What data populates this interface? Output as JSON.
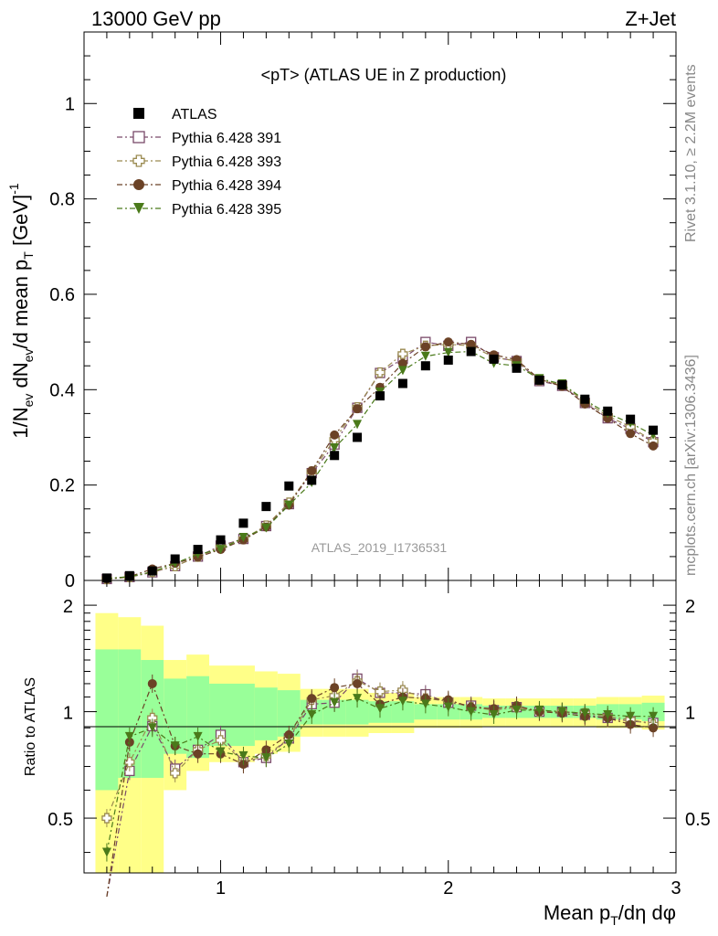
{
  "header": {
    "left": "13000 GeV pp",
    "right": "Z+Jet"
  },
  "side_labels": {
    "rivet": "Rivet 3.1.10, ≥ 2.2M events",
    "mcplots": "mcplots.cern.ch [arXiv:1306.3436]"
  },
  "colors": {
    "ATLAS": "#000000",
    "p391": "#7a4a6a",
    "p393": "#9a8a50",
    "p394": "#6b4226",
    "p395": "#4a7a1a",
    "band_inner": "#99ff99",
    "band_outer": "#ffff88"
  },
  "chart_data": [
    {
      "type": "line",
      "title": "<pT> (ATLAS UE in Z production)",
      "watermark": "ATLAS_2019_I1736531",
      "ylabel": "1/N_ev dN_ev/d mean p_T [GeV]^-1",
      "xlim": [
        0.4,
        3.0
      ],
      "ylim": [
        0,
        1.15
      ],
      "yticks": [
        0,
        0.2,
        0.4,
        0.6,
        0.8,
        1
      ],
      "ytick_labels": [
        "0",
        "0.2",
        "0.4",
        "0.6",
        "0.8",
        "1"
      ],
      "legend_position": "top-left",
      "x": [
        0.5,
        0.6,
        0.7,
        0.8,
        0.9,
        1.0,
        1.1,
        1.2,
        1.3,
        1.4,
        1.5,
        1.6,
        1.7,
        1.8,
        1.9,
        2.0,
        2.1,
        2.2,
        2.3,
        2.4,
        2.5,
        2.6,
        2.7,
        2.8,
        2.9
      ],
      "series": [
        {
          "name": "ATLAS",
          "marker": "filled-square",
          "values": [
            0.005,
            0.01,
            0.02,
            0.045,
            0.065,
            0.085,
            0.12,
            0.155,
            0.198,
            0.21,
            0.262,
            0.3,
            0.387,
            0.413,
            0.45,
            0.462,
            0.48,
            0.464,
            0.445,
            0.42,
            0.41,
            0.38,
            0.355,
            0.338,
            0.315
          ]
        },
        {
          "name": "Pythia 6.428 391",
          "marker": "open-square",
          "values": [
            0.003,
            0.007,
            0.017,
            0.03,
            0.05,
            0.073,
            0.087,
            0.114,
            0.16,
            0.225,
            0.285,
            0.362,
            0.435,
            0.465,
            0.5,
            0.492,
            0.5,
            0.468,
            0.46,
            0.418,
            0.408,
            0.372,
            0.34,
            0.318,
            0.29
          ]
        },
        {
          "name": "Pythia 6.428 393",
          "marker": "open-cross",
          "values": [
            0.003,
            0.007,
            0.018,
            0.03,
            0.05,
            0.07,
            0.087,
            0.115,
            0.163,
            0.228,
            0.295,
            0.363,
            0.436,
            0.475,
            0.492,
            0.495,
            0.492,
            0.468,
            0.46,
            0.42,
            0.41,
            0.375,
            0.345,
            0.322,
            0.292
          ]
        },
        {
          "name": "Pythia 6.428 394",
          "marker": "filled-circle",
          "values": [
            0.003,
            0.008,
            0.024,
            0.036,
            0.049,
            0.065,
            0.085,
            0.112,
            0.158,
            0.23,
            0.305,
            0.36,
            0.405,
            0.455,
            0.49,
            0.5,
            0.495,
            0.473,
            0.463,
            0.422,
            0.407,
            0.37,
            0.34,
            0.308,
            0.282
          ]
        },
        {
          "name": "Pythia 6.428 395",
          "marker": "filled-triangle-down",
          "values": [
            0.004,
            0.008,
            0.018,
            0.036,
            0.055,
            0.065,
            0.09,
            0.11,
            0.158,
            0.205,
            0.278,
            0.327,
            0.395,
            0.44,
            0.47,
            0.478,
            0.48,
            0.455,
            0.45,
            0.423,
            0.412,
            0.378,
            0.35,
            0.33,
            0.305
          ]
        }
      ]
    },
    {
      "type": "line",
      "ylabel": "Ratio to ATLAS",
      "xlabel": "Mean p_T/dη dφ",
      "xlim": [
        0.4,
        3.0
      ],
      "ylim": [
        0.35,
        2.35
      ],
      "yscale": "log",
      "yticks": [
        0.5,
        1,
        2
      ],
      "ytick_labels": [
        "0.5",
        "1",
        "2"
      ],
      "xticks": [
        1,
        2,
        3
      ],
      "xtick_labels": [
        "1",
        "2",
        "3"
      ],
      "reference_line": 1,
      "bands": {
        "x_edges": [
          0.45,
          0.55,
          0.65,
          0.75,
          0.85,
          0.95,
          1.05,
          1.15,
          1.25,
          1.35,
          1.45,
          1.55,
          1.65,
          1.75,
          1.85,
          1.95,
          2.05,
          2.15,
          2.25,
          2.35,
          2.45,
          2.55,
          2.65,
          2.75,
          2.85,
          2.95
        ],
        "inner_lo": [
          0.6,
          0.65,
          0.65,
          0.76,
          0.74,
          0.8,
          0.8,
          0.83,
          0.85,
          0.92,
          0.92,
          0.92,
          0.93,
          0.93,
          0.95,
          0.95,
          0.95,
          0.96,
          0.96,
          0.96,
          0.96,
          0.96,
          0.95,
          0.95,
          0.94
        ],
        "inner_hi": [
          1.5,
          1.5,
          1.4,
          1.24,
          1.26,
          1.2,
          1.2,
          1.17,
          1.15,
          1.08,
          1.08,
          1.08,
          1.07,
          1.07,
          1.05,
          1.05,
          1.05,
          1.04,
          1.04,
          1.04,
          1.04,
          1.04,
          1.05,
          1.05,
          1.06
        ],
        "outer_lo": [
          0.3,
          0.3,
          0.3,
          0.6,
          0.68,
          0.72,
          0.72,
          0.76,
          0.77,
          0.85,
          0.85,
          0.85,
          0.87,
          0.87,
          0.9,
          0.9,
          0.9,
          0.91,
          0.91,
          0.91,
          0.91,
          0.91,
          0.9,
          0.9,
          0.89
        ],
        "outer_hi": [
          1.9,
          1.85,
          1.75,
          1.4,
          1.45,
          1.35,
          1.35,
          1.3,
          1.28,
          1.16,
          1.16,
          1.16,
          1.13,
          1.13,
          1.1,
          1.1,
          1.1,
          1.09,
          1.09,
          1.09,
          1.09,
          1.09,
          1.1,
          1.1,
          1.11
        ]
      },
      "x": [
        0.5,
        0.6,
        0.7,
        0.8,
        0.9,
        1.0,
        1.1,
        1.2,
        1.3,
        1.4,
        1.5,
        1.6,
        1.7,
        1.8,
        1.9,
        2.0,
        2.1,
        2.2,
        2.3,
        2.4,
        2.5,
        2.6,
        2.7,
        2.8,
        2.9
      ],
      "series": [
        {
          "name": "Pythia 6.428 391",
          "marker": "open-square",
          "values": [
            0.3,
            0.68,
            0.91,
            0.69,
            0.78,
            0.86,
            0.72,
            0.74,
            0.84,
            1.05,
            1.06,
            1.24,
            1.13,
            1.13,
            1.12,
            1.06,
            1.04,
            1.01,
            1.03,
            1.0,
            1.0,
            0.98,
            0.96,
            0.94,
            0.93
          ]
        },
        {
          "name": "Pythia 6.428 393",
          "marker": "open-cross",
          "values": [
            0.5,
            0.72,
            0.96,
            0.67,
            0.78,
            0.83,
            0.72,
            0.75,
            0.84,
            1.08,
            1.11,
            1.22,
            1.14,
            1.15,
            1.09,
            1.07,
            1.03,
            1.01,
            1.03,
            1.0,
            1.0,
            0.99,
            0.97,
            0.95,
            0.92
          ]
        },
        {
          "name": "Pythia 6.428 394",
          "marker": "filled-circle",
          "values": [
            0.3,
            0.82,
            1.2,
            0.8,
            0.76,
            0.76,
            0.71,
            0.78,
            0.86,
            1.09,
            1.17,
            1.2,
            1.05,
            1.1,
            1.09,
            1.08,
            1.03,
            1.02,
            1.04,
            1.0,
            0.99,
            0.97,
            0.96,
            0.92,
            0.9
          ]
        },
        {
          "name": "Pythia 6.428 395",
          "marker": "filled-triangle-down",
          "values": [
            0.4,
            0.85,
            0.9,
            0.8,
            0.85,
            0.77,
            0.75,
            0.74,
            0.81,
            0.98,
            1.06,
            1.09,
            1.02,
            1.07,
            1.05,
            1.03,
            1.0,
            0.98,
            1.01,
            1.01,
            1.0,
            0.99,
            0.98,
            0.97,
            0.97
          ]
        }
      ]
    }
  ]
}
